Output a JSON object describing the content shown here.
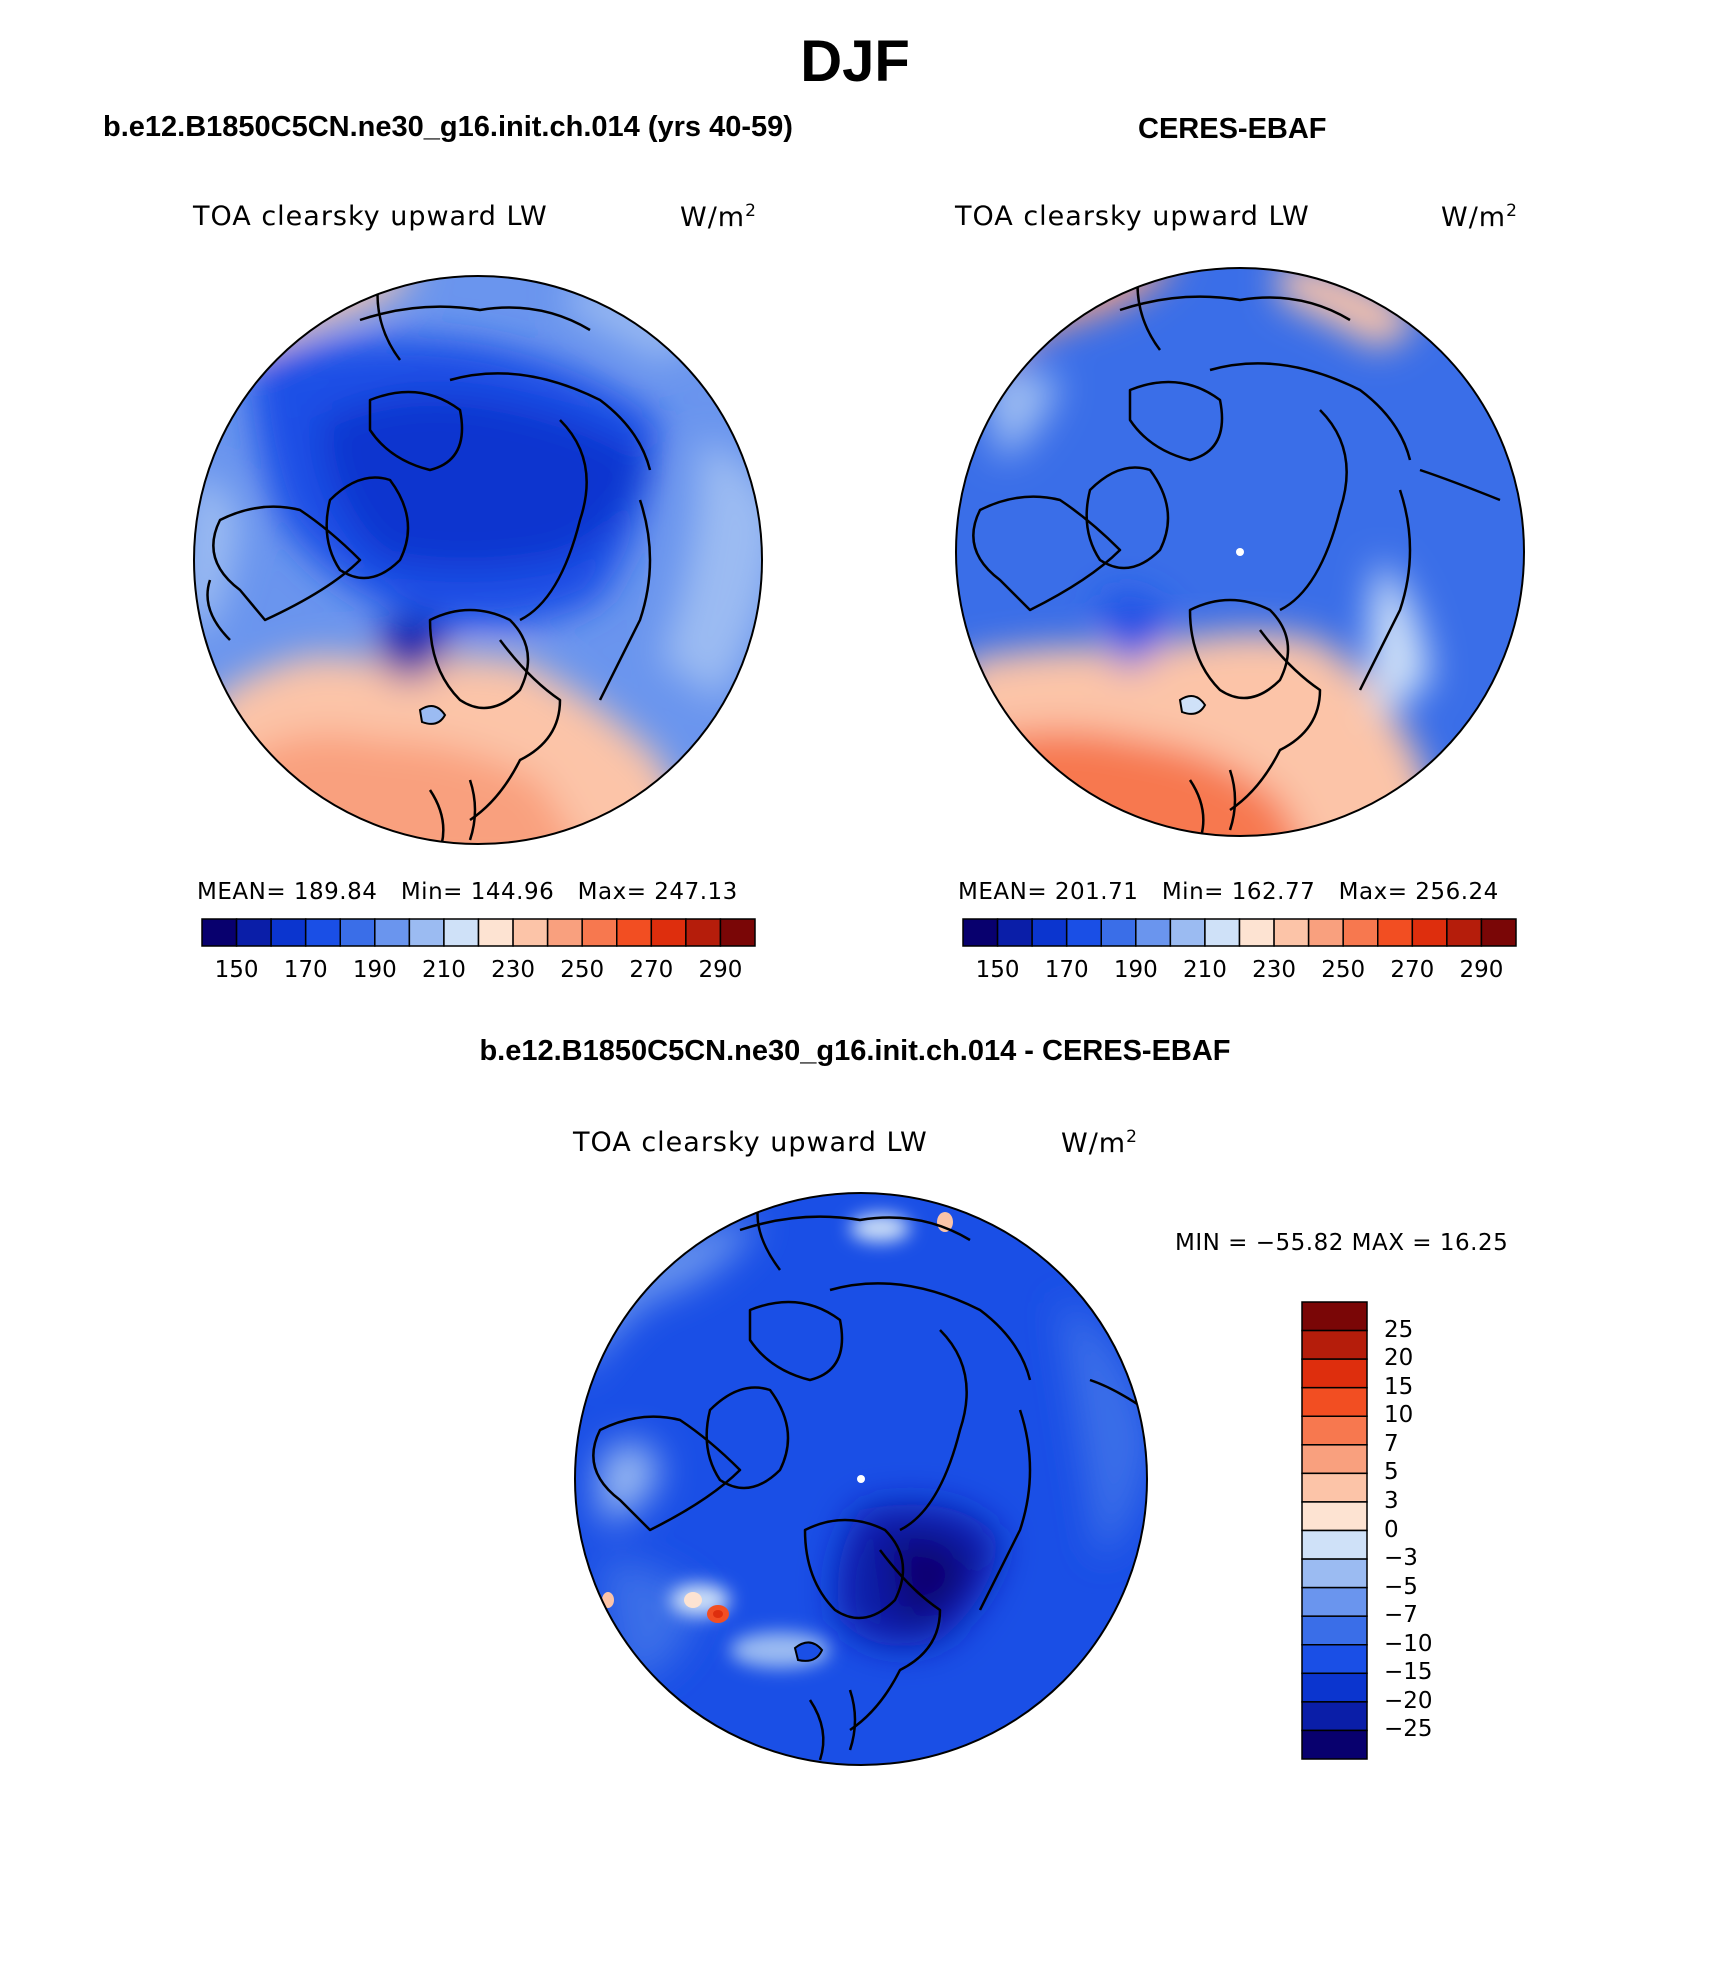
{
  "figure": {
    "season": "DJF",
    "model_title": "b.e12.B1850C5CN.ne30_g16.init.ch.014 (yrs 40-59)",
    "obs_title": "CERES-EBAF",
    "diff_title": "b.e12.B1850C5CN.ne30_g16.init.ch.014 - CERES-EBAF"
  },
  "panels": {
    "model": {
      "variable": "TOA clearsky upward LW",
      "units": "W/m",
      "units_exp": "2",
      "mean_label": "MEAN=",
      "mean": "189.84",
      "min_label": "Min=",
      "min": "144.96",
      "max_label": "Max=",
      "max": "247.13"
    },
    "obs": {
      "variable": "TOA clearsky upward LW",
      "units": "W/m",
      "units_exp": "2",
      "mean_label": "MEAN=",
      "mean": "201.71",
      "min_label": "Min=",
      "min": "162.77",
      "max_label": "Max=",
      "max": "256.24"
    },
    "diff": {
      "variable": "TOA clearsky upward LW",
      "units": "W/m",
      "units_exp": "2",
      "minmax_text": "MIN = −55.82 MAX =  16.25"
    }
  },
  "colorbar_abs": {
    "colors": [
      "#08006e",
      "#0a1ea8",
      "#0b35cf",
      "#1a4fe6",
      "#3a6ee8",
      "#6a95ee",
      "#9bbbf2",
      "#cfe1f8",
      "#fde3d2",
      "#fcc4a8",
      "#f9a07e",
      "#f7784f",
      "#f24e22",
      "#de2e0d",
      "#b51d0b",
      "#7a0606"
    ],
    "tick_labels": [
      "150",
      "170",
      "190",
      "210",
      "230",
      "250",
      "270",
      "290"
    ]
  },
  "colorbar_diff": {
    "colors": [
      "#7a0606",
      "#b51d0b",
      "#de2e0d",
      "#f24e22",
      "#f7784f",
      "#f9a07e",
      "#fcc4a8",
      "#fde3d2",
      "#cfe1f8",
      "#9bbbf2",
      "#6a95ee",
      "#3a6ee8",
      "#1a4fe6",
      "#0b35cf",
      "#0a1ea8",
      "#08006e"
    ],
    "tick_labels": [
      "25",
      "20",
      "15",
      "10",
      "7",
      "5",
      "3",
      "0",
      "−3",
      "−5",
      "−7",
      "−10",
      "−15",
      "−20",
      "−25"
    ]
  }
}
